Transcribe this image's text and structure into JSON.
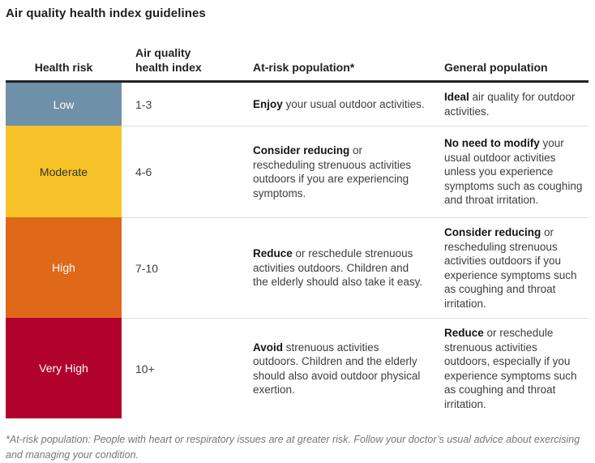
{
  "chart_data": {
    "type": "table",
    "title": "Air quality health index guidelines",
    "columns": {
      "risk": "Health risk",
      "index_line1": "Air quality",
      "index_line2": "health index",
      "at_risk": "At-risk population*",
      "general": "General population"
    },
    "rows": [
      {
        "risk": "Low",
        "index": "1-3",
        "color": "#6e90a8",
        "label_color": "#ffffff",
        "at_risk": {
          "lead": "Enjoy",
          "rest": " your usual outdoor activities."
        },
        "general": {
          "lead": "Ideal",
          "rest": " air quality for outdoor activities."
        }
      },
      {
        "risk": "Moderate",
        "index": "4-6",
        "color": "#f7c227",
        "label_color": "#333333",
        "at_risk": {
          "lead": "Consider reducing",
          "rest": " or rescheduling strenuous activities outdoors if you are experiencing symptoms."
        },
        "general": {
          "lead": "No need to modify",
          "rest": " your usual outdoor activities unless you experience symptoms such as coughing and throat irritation."
        }
      },
      {
        "risk": "High",
        "index": "7-10",
        "color": "#e06819",
        "label_color": "#ffffff",
        "at_risk": {
          "lead": "Reduce",
          "rest": " or reschedule strenuous activities outdoors. Children and the elderly should also take it easy."
        },
        "general": {
          "lead": "Consider reducing",
          "rest": " or rescheduling strenuous activities outdoors if you experience symptoms such as coughing and throat irritation."
        }
      },
      {
        "risk": "Very High",
        "index": "10+",
        "color": "#b1022e",
        "label_color": "#ffffff",
        "at_risk": {
          "lead": "Avoid",
          "rest": " strenuous activities outdoors. Children and the elderly should also avoid outdoor physical exertion."
        },
        "general": {
          "lead": "Reduce",
          "rest": " or reschedule strenuous activities outdoors, especially if you experience symptoms such as coughing and throat irritation."
        }
      }
    ],
    "footnote": "*At-risk population: People with heart or respiratory issues are at greater risk. Follow your doctor’s usual advice about exercising and managing your condition.",
    "accent_colors": {
      "header_rule": "#222222",
      "row_divider": "#dddddd",
      "body_text": "#3d3d3d",
      "footnote_text": "#767676"
    }
  }
}
